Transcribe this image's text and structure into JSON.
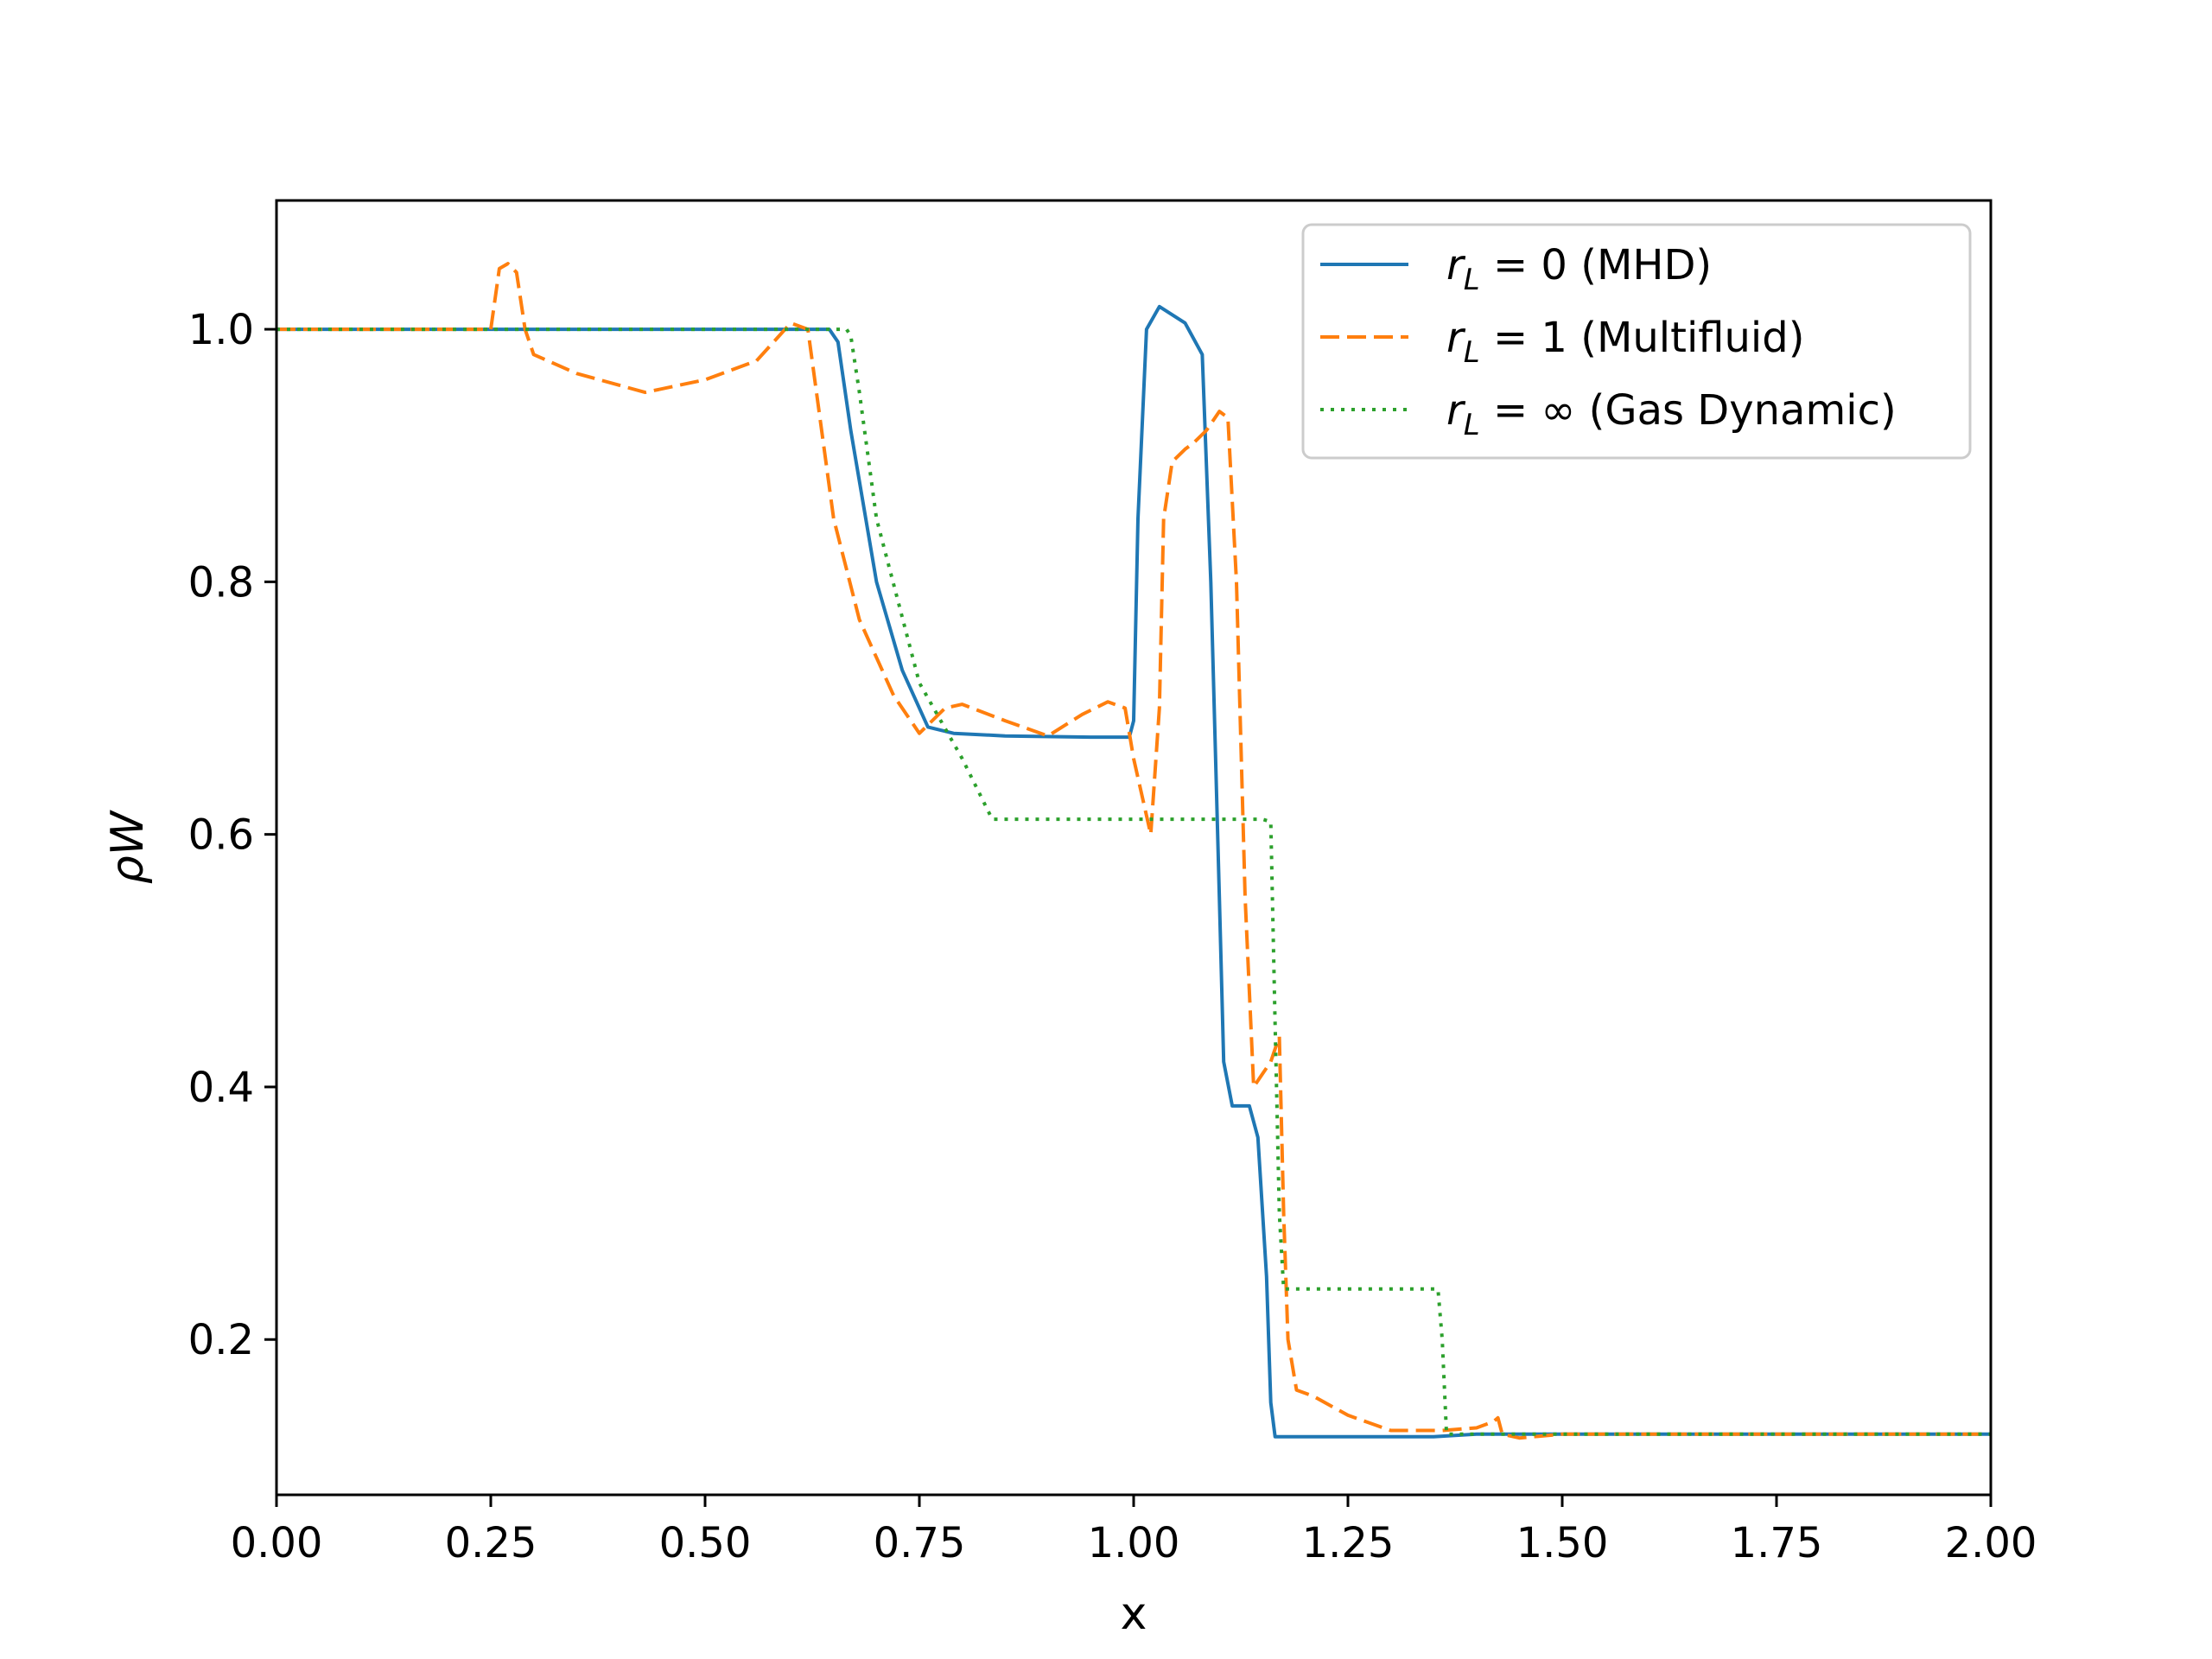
{
  "chart_data": {
    "type": "line",
    "title": "",
    "xlabel": "x",
    "ylabel": "ρW",
    "xlim": [
      0.0,
      2.0
    ],
    "ylim": [
      0.077,
      1.102
    ],
    "xticks": [
      "0.00",
      "0.25",
      "0.50",
      "0.75",
      "1.00",
      "1.25",
      "1.50",
      "1.75",
      "2.00"
    ],
    "yticks": [
      "0.2",
      "0.4",
      "0.6",
      "0.8",
      "1.0"
    ],
    "grid": false,
    "legend_position": "top-right",
    "series": [
      {
        "name": "r_L = 0 (MHD)",
        "legend_main": "r",
        "legend_sub": "L",
        "legend_rest": " = 0 (MHD)",
        "color": "#1f77b4",
        "style": "solid",
        "x": [
          0.0,
          0.645,
          0.655,
          0.67,
          0.7,
          0.73,
          0.76,
          0.79,
          0.85,
          0.95,
          0.995,
          1.0,
          1.005,
          1.015,
          1.03,
          1.06,
          1.08,
          1.09,
          1.1,
          1.105,
          1.115,
          1.125,
          1.135,
          1.145,
          1.155,
          1.16,
          1.165,
          1.25,
          1.35,
          1.4,
          1.5,
          2.0
        ],
        "y": [
          1.0,
          1.0,
          0.99,
          0.92,
          0.8,
          0.73,
          0.685,
          0.68,
          0.678,
          0.677,
          0.677,
          0.69,
          0.85,
          1.0,
          1.018,
          1.005,
          0.98,
          0.8,
          0.55,
          0.42,
          0.385,
          0.385,
          0.385,
          0.36,
          0.25,
          0.15,
          0.123,
          0.123,
          0.123,
          0.125,
          0.125,
          0.125
        ]
      },
      {
        "name": "r_L = 1 (Multifluid)",
        "legend_main": "r",
        "legend_sub": "L",
        "legend_rest": " = 1 (Multifluid)",
        "color": "#ff7f0e",
        "style": "dashed",
        "x": [
          0.0,
          0.25,
          0.26,
          0.27,
          0.28,
          0.29,
          0.3,
          0.35,
          0.43,
          0.5,
          0.56,
          0.58,
          0.6,
          0.62,
          0.65,
          0.68,
          0.72,
          0.75,
          0.78,
          0.8,
          0.85,
          0.9,
          0.94,
          0.97,
          0.99,
          1.0,
          1.02,
          1.03,
          1.035,
          1.045,
          1.06,
          1.07,
          1.085,
          1.1,
          1.11,
          1.12,
          1.13,
          1.14,
          1.15,
          1.16,
          1.17,
          1.175,
          1.18,
          1.19,
          1.21,
          1.25,
          1.3,
          1.36,
          1.4,
          1.42,
          1.425,
          1.43,
          1.45,
          1.5,
          2.0
        ],
        "y": [
          1.0,
          1.0,
          1.048,
          1.052,
          1.045,
          1.0,
          0.98,
          0.965,
          0.95,
          0.96,
          0.975,
          0.99,
          1.005,
          1.0,
          0.85,
          0.77,
          0.71,
          0.68,
          0.7,
          0.703,
          0.69,
          0.678,
          0.695,
          0.705,
          0.7,
          0.66,
          0.6,
          0.7,
          0.85,
          0.895,
          0.905,
          0.91,
          0.92,
          0.935,
          0.93,
          0.8,
          0.55,
          0.4,
          0.41,
          0.42,
          0.44,
          0.3,
          0.2,
          0.16,
          0.155,
          0.14,
          0.128,
          0.128,
          0.13,
          0.135,
          0.138,
          0.125,
          0.122,
          0.125,
          0.125
        ]
      },
      {
        "name": "r_L = ∞ (Gas Dynamic)",
        "legend_main": "r",
        "legend_sub": "L",
        "legend_rest": " = ∞ (Gas Dynamic)",
        "color": "#2ca02c",
        "style": "dotted",
        "x": [
          0.0,
          0.665,
          0.67,
          0.68,
          0.7,
          0.75,
          0.8,
          0.835,
          1.15,
          1.16,
          1.165,
          1.17,
          1.175,
          1.18,
          1.2,
          1.355,
          1.36,
          1.365,
          2.0
        ],
        "y": [
          1.0,
          1.0,
          0.995,
          0.95,
          0.85,
          0.72,
          0.66,
          0.612,
          0.612,
          0.61,
          0.45,
          0.3,
          0.24,
          0.24,
          0.24,
          0.24,
          0.2,
          0.125,
          0.125
        ]
      }
    ]
  }
}
